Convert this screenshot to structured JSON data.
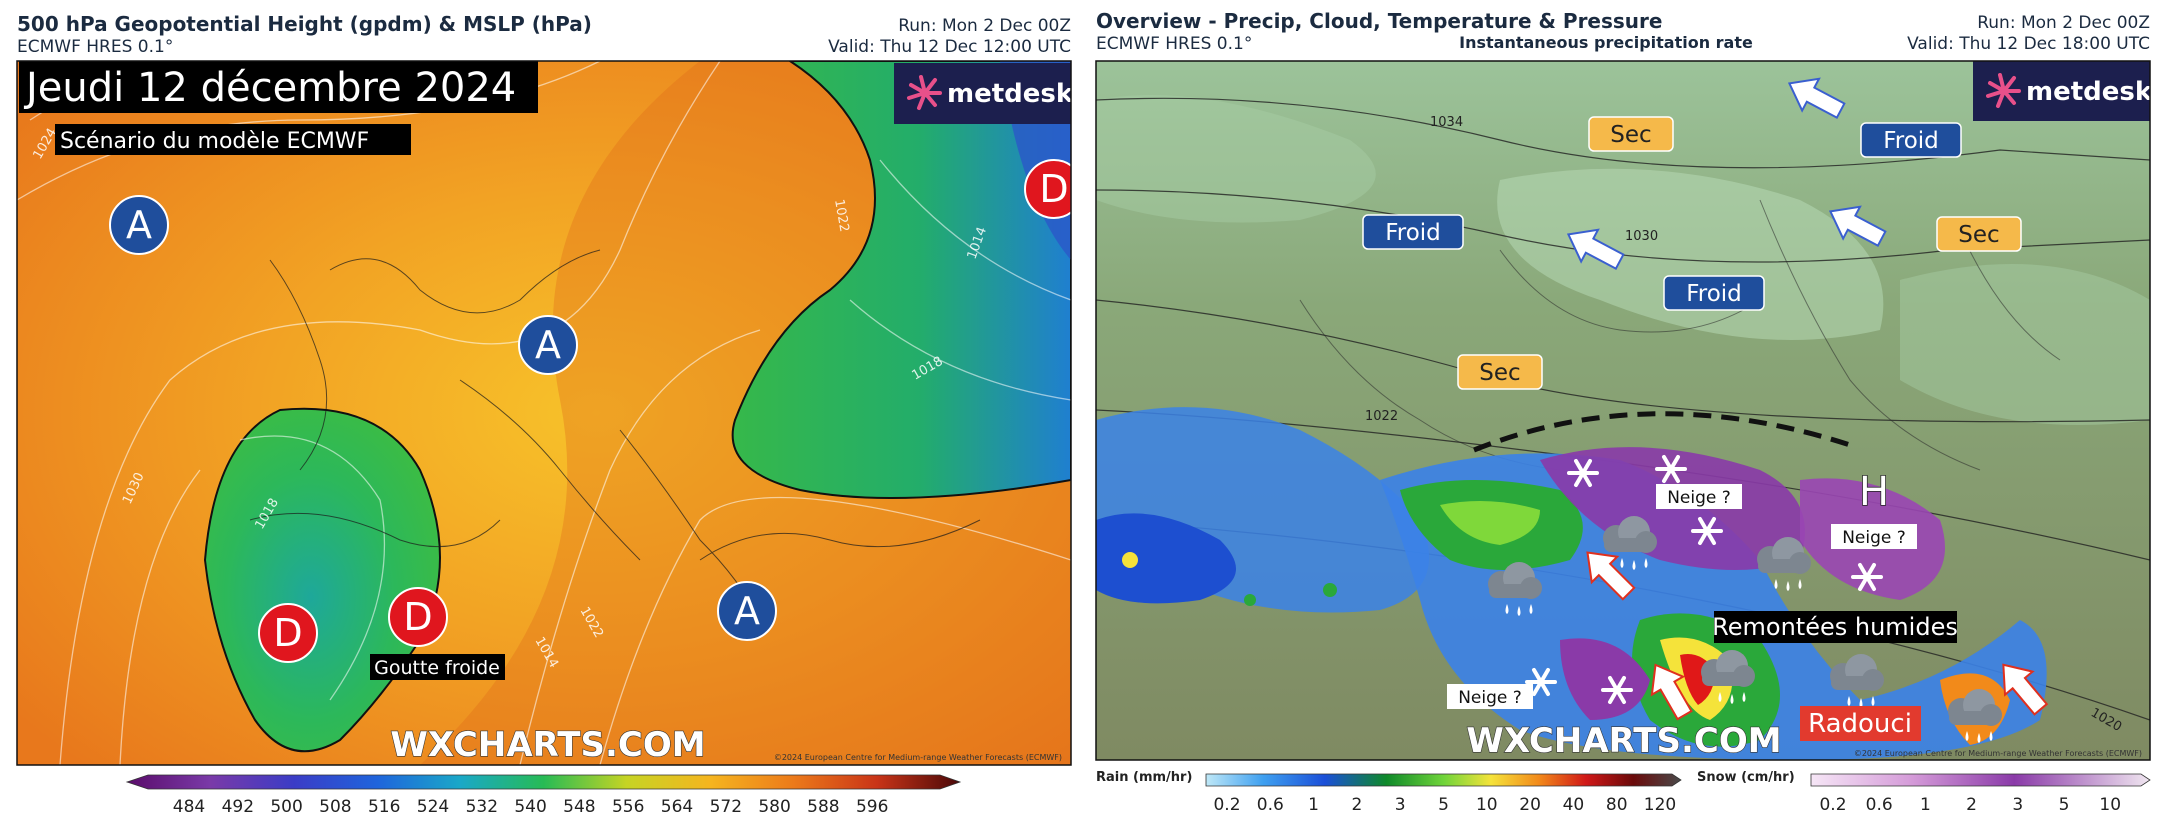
{
  "panels": [
    {
      "title": "500 hPa Geopotential Height (gpdm) & MSLP (hPa)",
      "subtitle": "ECMWF HRES 0.1°",
      "run": "Run: Mon 2 Dec 00Z",
      "valid": "Valid: Thu 12 Dec 12:00 UTC",
      "banner": "Jeudi 12 décembre 2024",
      "scenario": "Scénario du modèle ECMWF",
      "brand": "metdesk",
      "watermark": "WXCHARTS.COM",
      "copyright": "©2024 European Centre for Medium-range Weather Forecasts (ECMWF)",
      "centers": [
        "A",
        "A",
        "A",
        "D",
        "D",
        "D"
      ],
      "annotations": [
        "Goutte froide"
      ],
      "isobars": [
        "1024",
        "1030",
        "1018",
        "1022",
        "1014",
        "1022",
        "1014",
        "1018"
      ],
      "legend": {
        "ticks": [
          484,
          492,
          500,
          508,
          516,
          524,
          532,
          540,
          548,
          556,
          564,
          572,
          580,
          588,
          596
        ]
      }
    },
    {
      "title": "Overview - Precip, Cloud, Temperature & Pressure",
      "subtitle": "ECMWF HRES 0.1°",
      "caption": "Instantaneous precipitation rate",
      "run": "Run: Mon 2 Dec 00Z",
      "valid": "Valid: Thu 12 Dec 18:00 UTC",
      "brand": "metdesk",
      "watermark": "WXCHARTS.COM",
      "copyright": "©2024 European Centre for Medium-range Weather Forecasts (ECMWF)",
      "dry": [
        "Sec",
        "Sec",
        "Sec"
      ],
      "cold": [
        "Froid",
        "Froid",
        "Froid"
      ],
      "snow": [
        "Neige ?",
        "Neige ?",
        "Neige ?"
      ],
      "moist": "Remontées humides",
      "mild": "Radouci",
      "high": "H",
      "isobars": [
        "1034",
        "1030",
        "1022",
        "1020"
      ],
      "rain_legend": {
        "title": "Rain (mm/hr)",
        "ticks": [
          0.2,
          0.6,
          1,
          2,
          3,
          5,
          10,
          20,
          40,
          80,
          120
        ]
      },
      "snow_legend": {
        "title": "Snow (cm/hr)",
        "ticks": [
          0.2,
          0.6,
          1,
          2,
          3,
          5,
          10
        ]
      }
    }
  ]
}
